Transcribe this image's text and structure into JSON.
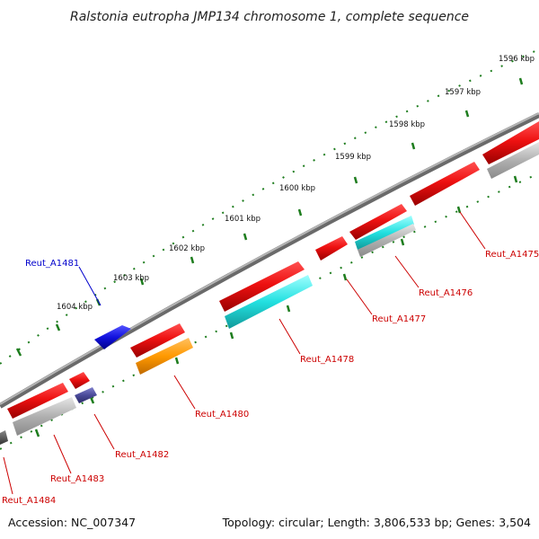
{
  "title": "Ralstonia eutropha JMP134 chromosome 1, complete sequence",
  "footer": {
    "accession": "Accession: NC_007347",
    "summary": "Topology: circular; Length: 3,806,533 bp; Genes: 3,504"
  },
  "ticks": [
    {
      "label": "1596 kbp"
    },
    {
      "label": "1597 kbp"
    },
    {
      "label": "1598 kbp"
    },
    {
      "label": "1599 kbp"
    },
    {
      "label": "1600 kbp"
    },
    {
      "label": "1601 kbp"
    },
    {
      "label": "1602 kbp"
    },
    {
      "label": "1603 kbp"
    },
    {
      "label": "1604 kbp"
    }
  ],
  "genes": [
    {
      "id": "reut-a1475",
      "label": "Reut_A1475",
      "color": "#cc0000",
      "strand": "reverse"
    },
    {
      "id": "reut-a1476",
      "label": "Reut_A1476",
      "color": "#cc0000",
      "strand": "reverse"
    },
    {
      "id": "reut-a1477",
      "label": "Reut_A1477",
      "color": "#cc0000",
      "strand": "reverse"
    },
    {
      "id": "reut-a1478",
      "label": "Reut_A1478",
      "color": "#cc0000",
      "strand": "reverse"
    },
    {
      "id": "reut-a1480",
      "label": "Reut_A1480",
      "color": "#cc0000",
      "strand": "reverse"
    },
    {
      "id": "reut-a1481",
      "label": "Reut_A1481",
      "color": "#0000cc",
      "strand": "forward"
    },
    {
      "id": "reut-a1482",
      "label": "Reut_A1482",
      "color": "#cc0000",
      "strand": "reverse"
    },
    {
      "id": "reut-a1483",
      "label": "Reut_A1483",
      "color": "#cc0000",
      "strand": "reverse"
    },
    {
      "id": "reut-a1484",
      "label": "Reut_A1484",
      "color": "#cc0000",
      "strand": "reverse"
    }
  ],
  "colors": {
    "backbone": "#8a8a8a",
    "tick": "#1e7d1e",
    "gene_red": "#ee1111",
    "gene_blue": "#1111dd",
    "cds_cyan": "#22e0e0",
    "cds_orange": "#ff9900",
    "cds_grey": "#aaaaaa",
    "cds_purple": "#4a4a99"
  }
}
